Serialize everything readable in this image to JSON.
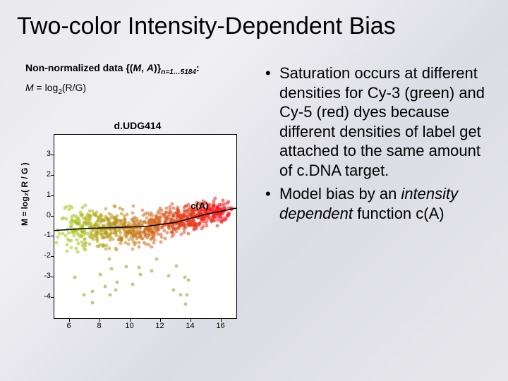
{
  "title": "Two-color Intensity-Dependent Bias",
  "left": {
    "dataLabelPre": "Non-normalized data {(",
    "dataLabelM": "M",
    "dataLabelMid": ", ",
    "dataLabelA": "A",
    "dataLabelPost": ")}",
    "dataLabelSub": "n=1…5184",
    "dataLabelColon": ":",
    "formulaM": "M",
    "formulaEq": " = log",
    "formulaSub": "2",
    "formulaRG": "(R/G)"
  },
  "chart": {
    "title": "d.UDG414",
    "ylabel": "M = log₂( R / G )",
    "cOfA": "c(A)",
    "background_color": "#ffffff",
    "xlim": [
      5,
      17
    ],
    "ylim": [
      -5,
      4
    ],
    "xticks": [
      6,
      8,
      10,
      12,
      14,
      16
    ],
    "yticks": [
      -4,
      -3,
      -2,
      -1,
      0,
      1,
      2,
      3
    ],
    "curve_points": [
      [
        5,
        -0.7
      ],
      [
        7,
        -0.6
      ],
      [
        9,
        -0.55
      ],
      [
        11,
        -0.5
      ],
      [
        13,
        -0.3
      ],
      [
        15,
        0.1
      ],
      [
        17,
        0.4
      ]
    ],
    "cOfA_xy": [
      14.5,
      -0.1
    ]
  },
  "bullets": [
    {
      "pre": "Saturation occurs at different densities for Cy-3 (green) and Cy-5 (red) dyes because different densities of label get attached to the same amount of c.DNA target.",
      "italic": ""
    },
    {
      "pre": "Model bias by an ",
      "italic": "intensity dependent",
      "post": " function c(A)"
    }
  ]
}
